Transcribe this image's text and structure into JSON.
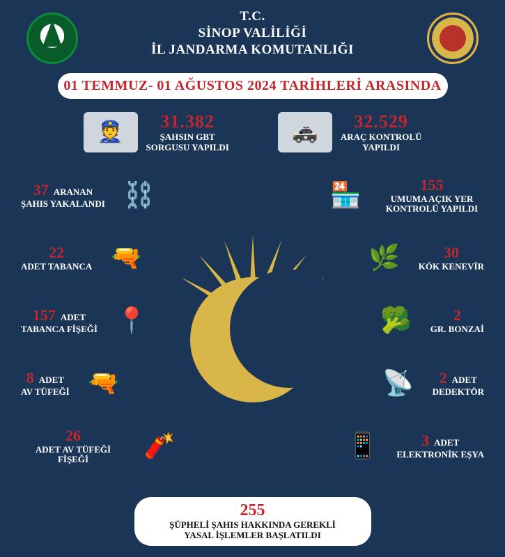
{
  "colors": {
    "background": "#1a3556",
    "accent_red": "#c1272d",
    "gold": "#d8b64a",
    "white": "#ffffff"
  },
  "header": {
    "line1": "T.C.",
    "line2": "SİNOP VALİLİĞİ",
    "line3": "İL JANDARMA KOMUTANLIĞI"
  },
  "date_banner": "01 TEMMUZ- 01 AĞUSTOS 2024 TARİHLERİ ARASINDA",
  "top_stats": [
    {
      "icon": "👮",
      "number": "31.382",
      "label_line1": "ŞAHSIN GBT",
      "label_line2": "SORGUSU YAPILDI"
    },
    {
      "icon": "🚓",
      "number": "32.529",
      "label_line1": "ARAÇ KONTROLÜ",
      "label_line2": "YAPILDI"
    }
  ],
  "left_items": [
    {
      "icon": "⛓️",
      "number": "37",
      "unit": "ARANAN",
      "label": "ŞAHIS YAKALANDI"
    },
    {
      "icon": "🔫",
      "number": "22",
      "unit": "",
      "label": "ADET TABANCA"
    },
    {
      "icon": "📍",
      "number": "157",
      "unit": "ADET",
      "label": "TABANCA FİŞEĞİ"
    },
    {
      "icon": "🔫",
      "number": "8",
      "unit": "ADET",
      "label": "AV TÜFEĞİ"
    },
    {
      "icon": "🧨",
      "number": "26",
      "unit": "",
      "label": "ADET AV TÜFEĞİ FİŞEĞİ"
    }
  ],
  "right_items": [
    {
      "icon": "🏪",
      "number": "155",
      "unit": "",
      "label": "UMUMA AÇIK YER KONTROLÜ YAPILDI"
    },
    {
      "icon": "🌿",
      "number": "30",
      "unit": "",
      "label": "KÖK KENEVİR"
    },
    {
      "icon": "🥦",
      "number": "2",
      "unit": "",
      "label": "GR. BONZAİ"
    },
    {
      "icon": "📡",
      "number": "2",
      "unit": "ADET",
      "label": "DEDEKTÖR"
    },
    {
      "icon": "📱",
      "number": "3",
      "unit": "ADET",
      "label": "ELEKTRONİK EŞYA"
    }
  ],
  "footer": {
    "number": "255",
    "line1": "ŞÜPHELİ ŞAHIS HAKKINDA GEREKLİ",
    "line2": "YASAL İŞLEMLER BAŞLATILDI"
  }
}
